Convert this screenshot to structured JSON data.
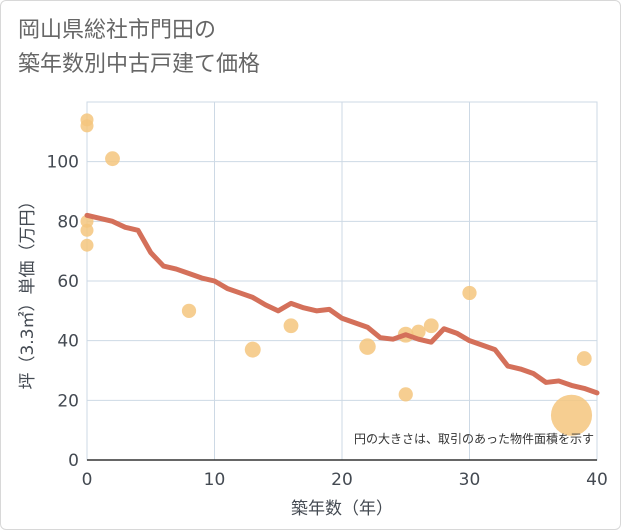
{
  "title_lines": [
    "岡山県総社市門田の",
    "築年数別中古戸建て価格"
  ],
  "note": "円の大きさは、取引のあった物件面積を示す",
  "colors": {
    "line": "#d4705a",
    "bubble": "#f5c67e",
    "grid": "#cdd9e5",
    "axis": "#333333"
  },
  "chart_data": {
    "type": "scatter",
    "title": "岡山県総社市門田の築年数別中古戸建て価格",
    "xlabel": "築年数（年）",
    "ylabel": "坪（3.3㎡）単価（万円）",
    "xlim": [
      0,
      40
    ],
    "ylim": [
      0,
      120
    ],
    "x_ticks": [
      0,
      10,
      20,
      30,
      40
    ],
    "y_ticks": [
      0,
      20,
      40,
      60,
      80,
      100
    ],
    "grid": true,
    "points": [
      {
        "x": 0,
        "y": 114,
        "size": 1
      },
      {
        "x": 0,
        "y": 112,
        "size": 1
      },
      {
        "x": 0,
        "y": 80,
        "size": 1
      },
      {
        "x": 0,
        "y": 77,
        "size": 1
      },
      {
        "x": 0,
        "y": 72,
        "size": 1
      },
      {
        "x": 2,
        "y": 101,
        "size": 1.3
      },
      {
        "x": 8,
        "y": 50,
        "size": 1.2
      },
      {
        "x": 13,
        "y": 37,
        "size": 1.5
      },
      {
        "x": 16,
        "y": 45,
        "size": 1.3
      },
      {
        "x": 22,
        "y": 38,
        "size": 1.6
      },
      {
        "x": 25,
        "y": 42,
        "size": 1.5
      },
      {
        "x": 26,
        "y": 43,
        "size": 1.2
      },
      {
        "x": 27,
        "y": 45,
        "size": 1.3
      },
      {
        "x": 25,
        "y": 22,
        "size": 1.2
      },
      {
        "x": 30,
        "y": 56,
        "size": 1.2
      },
      {
        "x": 39,
        "y": 34,
        "size": 1.3
      },
      {
        "x": 38,
        "y": 15,
        "size": 10
      }
    ],
    "trend": {
      "x": [
        0,
        1,
        2,
        3,
        4,
        5,
        6,
        7,
        8,
        9,
        10,
        11,
        12,
        13,
        14,
        15,
        16,
        17,
        18,
        19,
        20,
        21,
        22,
        23,
        24,
        25,
        26,
        27,
        28,
        29,
        30,
        31,
        32,
        33,
        34,
        35,
        36,
        37,
        38,
        39,
        40
      ],
      "y": [
        82,
        81,
        80,
        78,
        77,
        69.5,
        65,
        64,
        62.5,
        61,
        60,
        57.5,
        56,
        54.5,
        52,
        50,
        52.5,
        51,
        50,
        50.5,
        47.5,
        46,
        44.5,
        41,
        40.5,
        42,
        40.5,
        39.5,
        44,
        42.5,
        40,
        38.5,
        37,
        31.5,
        30.5,
        29,
        26,
        26.5,
        25,
        24,
        22.5
      ]
    }
  }
}
